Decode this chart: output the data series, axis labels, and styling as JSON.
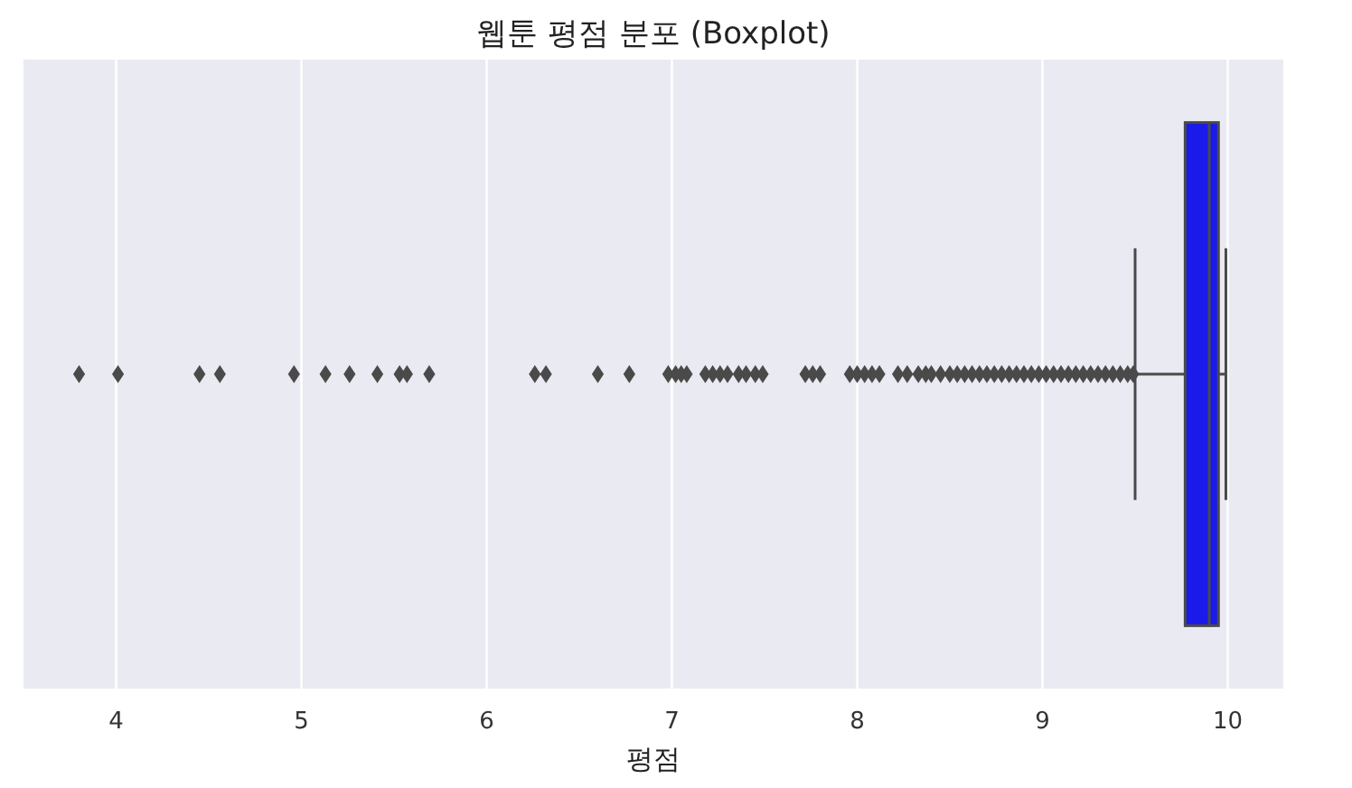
{
  "chart_data": {
    "type": "box",
    "title": "웹툰 평점 분포 (Boxplot)",
    "xlabel": "평점",
    "orientation": "horizontal",
    "categories": [
      null
    ],
    "color": "#1a1aeb",
    "grid": "x",
    "marker": "diamond",
    "xlim": [
      3.5,
      10.3
    ],
    "xticks": [
      4,
      5,
      6,
      7,
      8,
      9,
      10
    ],
    "boxes": [
      {
        "low": 9.5,
        "q1": 9.77,
        "median": 9.9,
        "q3": 9.95,
        "high": 9.99,
        "outliers": [
          3.8,
          4.01,
          4.45,
          4.56,
          4.96,
          5.13,
          5.26,
          5.41,
          5.53,
          5.57,
          5.69,
          6.26,
          6.32,
          6.6,
          6.77,
          6.98,
          7.02,
          7.05,
          7.08,
          7.18,
          7.22,
          7.26,
          7.3,
          7.36,
          7.4,
          7.45,
          7.49,
          7.72,
          7.76,
          7.8,
          7.96,
          8.0,
          8.04,
          8.08,
          8.12,
          8.22,
          8.27,
          8.33,
          8.37,
          8.4,
          8.45,
          8.5,
          8.54,
          8.58,
          8.62,
          8.66,
          8.7,
          8.74,
          8.78,
          8.82,
          8.86,
          8.9,
          8.94,
          8.98,
          9.02,
          9.06,
          9.1,
          9.14,
          9.18,
          9.22,
          9.26,
          9.3,
          9.34,
          9.38,
          9.42,
          9.46,
          9.49
        ]
      }
    ]
  }
}
